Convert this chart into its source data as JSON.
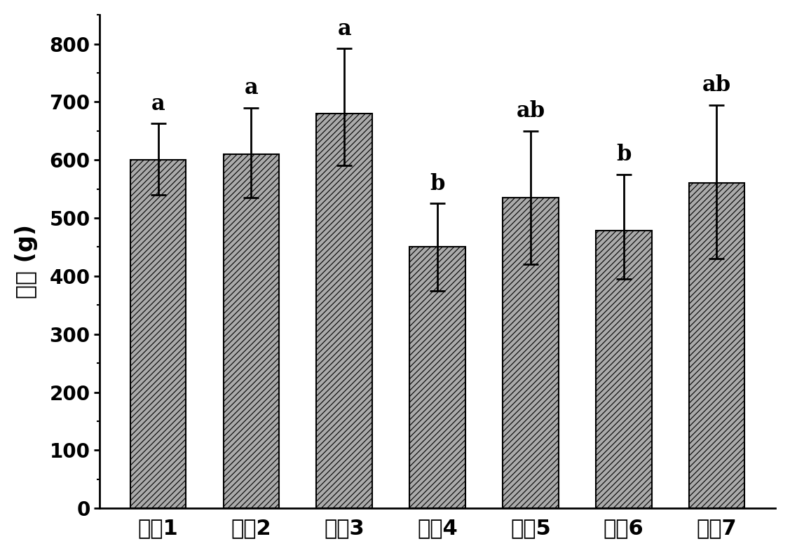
{
  "categories": [
    "产品1",
    "产品2",
    "产品3",
    "产品4",
    "产品5",
    "产品6",
    "产品7"
  ],
  "values": [
    600,
    610,
    680,
    450,
    535,
    478,
    560
  ],
  "errors_upper": [
    63,
    80,
    112,
    75,
    115,
    97,
    135
  ],
  "errors_lower": [
    60,
    75,
    90,
    75,
    115,
    83,
    130
  ],
  "labels": [
    "a",
    "a",
    "a",
    "b",
    "ab",
    "b",
    "ab"
  ],
  "ylabel": "硬度 (g)",
  "ylim": [
    0,
    850
  ],
  "yticks": [
    0,
    100,
    200,
    300,
    400,
    500,
    600,
    700,
    800
  ],
  "bar_color": "#aaaaaa",
  "hatch": "////",
  "bar_width": 0.6,
  "label_fontsize": 22,
  "tick_fontsize": 20,
  "ylabel_fontsize": 24,
  "xlabel_fontsize": 22,
  "background_color": "#ffffff"
}
